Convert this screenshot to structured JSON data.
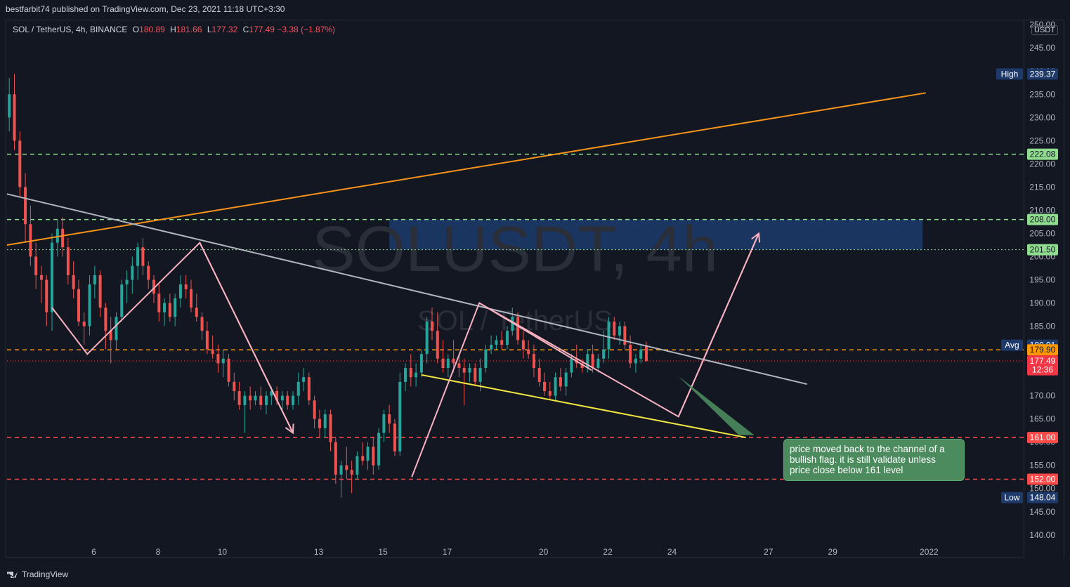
{
  "header": {
    "publisher_line": "bestfarbit74 published on TradingView.com, Dec 23, 2021 11:18 UTC+3:30"
  },
  "legend": {
    "symbol": "SOL / TetherUS, 4h, BINANCE",
    "open_label": "O",
    "open": "180.89",
    "high_label": "H",
    "high": "181.66",
    "low_label": "L",
    "low": "177.32",
    "close_label": "C",
    "close": "177.49",
    "change": "−3.38 (−1.87%)"
  },
  "watermark": {
    "line1": "SOLUSDT, 4h",
    "line2": "SOL / TetherUS"
  },
  "currency": "USDT",
  "annotation": {
    "text": "price moved back to the channel of a bullish flag. it is still validate unless price close below 161 level"
  },
  "footer": {
    "brand": "TradingView"
  },
  "colors": {
    "background": "#131722",
    "up": "#26a69a",
    "down": "#ef5350",
    "trend_orange": "#f7931a",
    "trend_grey": "#b2b5be",
    "flag_yellow": "#f2e640",
    "path_pink": "#f8b1c0",
    "level_green": "#8fdc8f",
    "level_red": "#ff4a4a",
    "level_orange": "#ff9800",
    "zone_blue": "#1f4a8a",
    "note_green": "#4b8b5e"
  },
  "chart_data": {
    "type": "candlestick",
    "symbol": "SOL / TetherUS",
    "interval": "4h",
    "exchange": "BINANCE",
    "y_ticks": [
      140,
      145,
      150,
      155,
      160,
      165,
      170,
      175,
      180,
      185,
      190,
      195,
      200,
      205,
      210,
      215,
      220,
      225,
      230,
      235,
      240,
      245,
      250
    ],
    "x_ticks": [
      {
        "label": "6",
        "t": 6
      },
      {
        "label": "8",
        "t": 8
      },
      {
        "label": "10",
        "t": 10
      },
      {
        "label": "13",
        "t": 13
      },
      {
        "label": "15",
        "t": 15
      },
      {
        "label": "17",
        "t": 17
      },
      {
        "label": "20",
        "t": 20
      },
      {
        "label": "22",
        "t": 22
      },
      {
        "label": "24",
        "t": 24
      },
      {
        "label": "27",
        "t": 27
      },
      {
        "label": "29",
        "t": 29
      },
      {
        "label": "2022",
        "t": 32
      }
    ],
    "ylim": [
      138,
      252
    ],
    "xlim": [
      3.3,
      34.9
    ],
    "price_labels": [
      {
        "label": "High",
        "value": "239.37",
        "y": 239.37,
        "kind": "high"
      },
      {
        "label": "",
        "value": "222.08",
        "y": 222.08,
        "kind": "green"
      },
      {
        "label": "",
        "value": "208.00",
        "y": 208.0,
        "kind": "green"
      },
      {
        "label": "",
        "value": "201.50",
        "y": 201.5,
        "kind": "green"
      },
      {
        "label": "Avg",
        "value": "180.91",
        "y": 180.91,
        "kind": "avg"
      },
      {
        "label": "",
        "value": "179.90",
        "y": 179.9,
        "kind": "orange"
      },
      {
        "label": "",
        "value": "177.49",
        "y": 177.49,
        "kind": "last"
      },
      {
        "label": "",
        "value": "12:36",
        "y": 175.6,
        "kind": "timer"
      },
      {
        "label": "",
        "value": "161.00",
        "y": 161.0,
        "kind": "red"
      },
      {
        "label": "",
        "value": "152.00",
        "y": 152.0,
        "kind": "red"
      },
      {
        "label": "Low",
        "value": "148.04",
        "y": 148.04,
        "kind": "low"
      }
    ],
    "levels": [
      {
        "y": 222.08,
        "style": "green"
      },
      {
        "y": 208.0,
        "style": "green"
      },
      {
        "y": 201.5,
        "style": "green-fine"
      },
      {
        "y": 179.9,
        "style": "orange"
      },
      {
        "y": 177.49,
        "style": "last"
      },
      {
        "y": 161.0,
        "style": "red"
      },
      {
        "y": 152.0,
        "style": "red"
      }
    ],
    "zone": {
      "t1": 15.2,
      "t2": 31.8,
      "y1": 201.5,
      "y2": 208.0
    },
    "trendlines": [
      {
        "style": "orange",
        "points": [
          [
            3.3,
            202.5
          ],
          [
            31.9,
            235.3
          ]
        ]
      },
      {
        "style": "grey",
        "points": [
          [
            3.3,
            213.5
          ],
          [
            28.2,
            172.5
          ]
        ]
      },
      {
        "style": "yellow",
        "points": [
          [
            16.2,
            174.5
          ],
          [
            26.3,
            161.0
          ]
        ]
      },
      {
        "style": "pink",
        "points": [
          [
            4.7,
            189.0
          ],
          [
            5.8,
            179.0
          ],
          [
            9.3,
            203.0
          ],
          [
            12.2,
            162.0
          ]
        ]
      },
      {
        "style": "pink",
        "points": [
          [
            15.9,
            152.5
          ],
          [
            18.0,
            190.0
          ],
          [
            24.2,
            165.5
          ],
          [
            26.7,
            205.0
          ]
        ]
      },
      {
        "style": "pink-arrow",
        "points": [
          [
            24.2,
            165.5
          ],
          [
            26.7,
            205.0
          ]
        ]
      },
      {
        "style": "pink-arrow",
        "points": [
          [
            9.3,
            203.0
          ],
          [
            12.2,
            162.0
          ]
        ]
      },
      {
        "style": "pink",
        "points": [
          [
            18.0,
            190.0
          ],
          [
            21.5,
            175.5
          ]
        ]
      },
      {
        "style": "note-pointer",
        "points": [
          [
            24.2,
            174.2
          ],
          [
            26.3,
            161.5
          ]
        ]
      }
    ],
    "candles": [
      {
        "t": 3.37,
        "o": 230.0,
        "h": 238.5,
        "l": 227.0,
        "c": 235.0
      },
      {
        "t": 3.53,
        "o": 235.0,
        "h": 239.37,
        "l": 223.0,
        "c": 225.0
      },
      {
        "t": 3.7,
        "o": 225.0,
        "h": 227.0,
        "l": 213.0,
        "c": 215.0
      },
      {
        "t": 3.87,
        "o": 215.0,
        "h": 218.0,
        "l": 203.0,
        "c": 207.0
      },
      {
        "t": 4.03,
        "o": 207.0,
        "h": 211.0,
        "l": 198.0,
        "c": 200.0
      },
      {
        "t": 4.2,
        "o": 200.0,
        "h": 203.0,
        "l": 193.0,
        "c": 196.0
      },
      {
        "t": 4.37,
        "o": 196.0,
        "h": 198.0,
        "l": 190.0,
        "c": 195.0
      },
      {
        "t": 4.53,
        "o": 195.0,
        "h": 196.0,
        "l": 185.0,
        "c": 188.0
      },
      {
        "t": 4.7,
        "o": 188.0,
        "h": 205.0,
        "l": 184.0,
        "c": 203.0
      },
      {
        "t": 4.87,
        "o": 203.0,
        "h": 208.0,
        "l": 200.0,
        "c": 206.0
      },
      {
        "t": 5.03,
        "o": 206.0,
        "h": 208.5,
        "l": 200.0,
        "c": 202.0
      },
      {
        "t": 5.2,
        "o": 202.0,
        "h": 204.0,
        "l": 194.0,
        "c": 196.0
      },
      {
        "t": 5.37,
        "o": 196.0,
        "h": 199.0,
        "l": 191.0,
        "c": 193.0
      },
      {
        "t": 5.53,
        "o": 193.0,
        "h": 195.0,
        "l": 185.0,
        "c": 186.0
      },
      {
        "t": 5.7,
        "o": 186.0,
        "h": 188.0,
        "l": 181.0,
        "c": 185.0
      },
      {
        "t": 5.87,
        "o": 185.0,
        "h": 196.0,
        "l": 183.0,
        "c": 194.0
      },
      {
        "t": 6.03,
        "o": 194.0,
        "h": 198.0,
        "l": 191.0,
        "c": 196.0
      },
      {
        "t": 6.2,
        "o": 196.0,
        "h": 197.0,
        "l": 187.0,
        "c": 189.0
      },
      {
        "t": 6.37,
        "o": 189.0,
        "h": 190.0,
        "l": 180.0,
        "c": 184.0
      },
      {
        "t": 6.53,
        "o": 184.0,
        "h": 187.0,
        "l": 177.0,
        "c": 182.0
      },
      {
        "t": 6.7,
        "o": 182.0,
        "h": 188.0,
        "l": 180.0,
        "c": 187.0
      },
      {
        "t": 6.87,
        "o": 187.0,
        "h": 195.0,
        "l": 186.0,
        "c": 194.0
      },
      {
        "t": 7.03,
        "o": 194.0,
        "h": 197.0,
        "l": 190.0,
        "c": 195.0
      },
      {
        "t": 7.2,
        "o": 195.0,
        "h": 200.0,
        "l": 192.0,
        "c": 198.0
      },
      {
        "t": 7.37,
        "o": 198.0,
        "h": 203.0,
        "l": 195.0,
        "c": 202.0
      },
      {
        "t": 7.53,
        "o": 202.0,
        "h": 204.0,
        "l": 196.0,
        "c": 198.0
      },
      {
        "t": 7.7,
        "o": 198.0,
        "h": 199.0,
        "l": 193.0,
        "c": 195.0
      },
      {
        "t": 7.87,
        "o": 195.0,
        "h": 196.0,
        "l": 190.0,
        "c": 192.0
      },
      {
        "t": 8.03,
        "o": 192.0,
        "h": 194.0,
        "l": 186.0,
        "c": 188.0
      },
      {
        "t": 8.2,
        "o": 188.0,
        "h": 191.0,
        "l": 185.0,
        "c": 190.0
      },
      {
        "t": 8.37,
        "o": 190.0,
        "h": 192.0,
        "l": 186.0,
        "c": 187.0
      },
      {
        "t": 8.53,
        "o": 187.0,
        "h": 192.0,
        "l": 185.0,
        "c": 191.0
      },
      {
        "t": 8.7,
        "o": 191.0,
        "h": 196.0,
        "l": 189.0,
        "c": 194.0
      },
      {
        "t": 8.87,
        "o": 194.0,
        "h": 196.0,
        "l": 191.0,
        "c": 193.0
      },
      {
        "t": 9.03,
        "o": 193.0,
        "h": 195.0,
        "l": 188.0,
        "c": 189.0
      },
      {
        "t": 9.2,
        "o": 189.0,
        "h": 192.0,
        "l": 186.0,
        "c": 187.0
      },
      {
        "t": 9.37,
        "o": 187.0,
        "h": 188.0,
        "l": 182.0,
        "c": 184.0
      },
      {
        "t": 9.53,
        "o": 184.0,
        "h": 186.0,
        "l": 179.0,
        "c": 180.0
      },
      {
        "t": 9.7,
        "o": 180.0,
        "h": 183.0,
        "l": 178.0,
        "c": 179.0
      },
      {
        "t": 9.87,
        "o": 179.0,
        "h": 181.0,
        "l": 175.0,
        "c": 177.0
      },
      {
        "t": 10.03,
        "o": 177.0,
        "h": 180.0,
        "l": 174.0,
        "c": 178.0
      },
      {
        "t": 10.2,
        "o": 178.0,
        "h": 179.0,
        "l": 172.0,
        "c": 173.0
      },
      {
        "t": 10.37,
        "o": 173.0,
        "h": 175.0,
        "l": 169.0,
        "c": 171.0
      },
      {
        "t": 10.53,
        "o": 171.0,
        "h": 173.0,
        "l": 167.0,
        "c": 168.0
      },
      {
        "t": 10.7,
        "o": 168.0,
        "h": 171.0,
        "l": 162.0,
        "c": 170.0
      },
      {
        "t": 10.87,
        "o": 170.0,
        "h": 172.0,
        "l": 167.0,
        "c": 169.0
      },
      {
        "t": 11.03,
        "o": 169.0,
        "h": 171.0,
        "l": 168.0,
        "c": 170.0
      },
      {
        "t": 11.2,
        "o": 170.0,
        "h": 172.0,
        "l": 167.0,
        "c": 168.0
      },
      {
        "t": 11.37,
        "o": 168.0,
        "h": 171.0,
        "l": 166.0,
        "c": 170.0
      },
      {
        "t": 11.53,
        "o": 170.0,
        "h": 172.0,
        "l": 168.0,
        "c": 171.0
      },
      {
        "t": 11.7,
        "o": 171.0,
        "h": 172.0,
        "l": 168.0,
        "c": 169.0
      },
      {
        "t": 11.87,
        "o": 169.0,
        "h": 171.0,
        "l": 167.0,
        "c": 170.0
      },
      {
        "t": 12.03,
        "o": 170.0,
        "h": 171.0,
        "l": 167.0,
        "c": 168.0
      },
      {
        "t": 12.2,
        "o": 168.0,
        "h": 171.0,
        "l": 167.0,
        "c": 170.0
      },
      {
        "t": 12.37,
        "o": 170.0,
        "h": 175.0,
        "l": 168.0,
        "c": 173.0
      },
      {
        "t": 12.53,
        "o": 173.0,
        "h": 176.0,
        "l": 171.0,
        "c": 174.0
      },
      {
        "t": 12.7,
        "o": 174.0,
        "h": 175.0,
        "l": 168.0,
        "c": 169.0
      },
      {
        "t": 12.87,
        "o": 169.0,
        "h": 170.0,
        "l": 163.0,
        "c": 165.0
      },
      {
        "t": 13.03,
        "o": 165.0,
        "h": 167.0,
        "l": 161.0,
        "c": 163.0
      },
      {
        "t": 13.2,
        "o": 163.0,
        "h": 167.0,
        "l": 161.0,
        "c": 166.0
      },
      {
        "t": 13.37,
        "o": 166.0,
        "h": 167.0,
        "l": 158.0,
        "c": 160.0
      },
      {
        "t": 13.53,
        "o": 160.0,
        "h": 161.0,
        "l": 151.0,
        "c": 153.0
      },
      {
        "t": 13.7,
        "o": 153.0,
        "h": 156.0,
        "l": 148.04,
        "c": 155.0
      },
      {
        "t": 13.87,
        "o": 155.0,
        "h": 159.0,
        "l": 152.0,
        "c": 154.0
      },
      {
        "t": 14.03,
        "o": 154.0,
        "h": 156.0,
        "l": 149.0,
        "c": 153.0
      },
      {
        "t": 14.2,
        "o": 153.0,
        "h": 158.0,
        "l": 152.0,
        "c": 157.0
      },
      {
        "t": 14.37,
        "o": 157.0,
        "h": 160.0,
        "l": 155.0,
        "c": 156.0
      },
      {
        "t": 14.53,
        "o": 156.0,
        "h": 160.0,
        "l": 154.0,
        "c": 159.0
      },
      {
        "t": 14.7,
        "o": 159.0,
        "h": 161.0,
        "l": 153.0,
        "c": 155.0
      },
      {
        "t": 14.87,
        "o": 155.0,
        "h": 163.0,
        "l": 154.0,
        "c": 162.0
      },
      {
        "t": 15.03,
        "o": 162.0,
        "h": 167.0,
        "l": 160.0,
        "c": 166.0
      },
      {
        "t": 15.2,
        "o": 166.0,
        "h": 168.0,
        "l": 162.0,
        "c": 164.0
      },
      {
        "t": 15.37,
        "o": 164.0,
        "h": 165.0,
        "l": 157.0,
        "c": 158.0
      },
      {
        "t": 15.53,
        "o": 158.0,
        "h": 175.0,
        "l": 157.0,
        "c": 173.0
      },
      {
        "t": 15.7,
        "o": 173.0,
        "h": 177.0,
        "l": 171.0,
        "c": 176.0
      },
      {
        "t": 15.87,
        "o": 176.0,
        "h": 179.0,
        "l": 172.0,
        "c": 174.0
      },
      {
        "t": 16.03,
        "o": 174.0,
        "h": 177.0,
        "l": 172.0,
        "c": 175.0
      },
      {
        "t": 16.2,
        "o": 175.0,
        "h": 180.0,
        "l": 174.0,
        "c": 179.0
      },
      {
        "t": 16.37,
        "o": 179.0,
        "h": 187.0,
        "l": 177.0,
        "c": 186.0
      },
      {
        "t": 16.53,
        "o": 186.0,
        "h": 189.0,
        "l": 182.0,
        "c": 184.0
      },
      {
        "t": 16.7,
        "o": 184.0,
        "h": 188.0,
        "l": 177.0,
        "c": 178.0
      },
      {
        "t": 16.87,
        "o": 178.0,
        "h": 182.0,
        "l": 175.0,
        "c": 176.0
      },
      {
        "t": 17.03,
        "o": 176.0,
        "h": 179.0,
        "l": 174.0,
        "c": 178.0
      },
      {
        "t": 17.2,
        "o": 178.0,
        "h": 182.0,
        "l": 175.0,
        "c": 177.0
      },
      {
        "t": 17.37,
        "o": 177.0,
        "h": 179.0,
        "l": 174.0,
        "c": 176.0
      },
      {
        "t": 17.53,
        "o": 176.0,
        "h": 178.0,
        "l": 168.0,
        "c": 175.0
      },
      {
        "t": 17.7,
        "o": 175.0,
        "h": 177.0,
        "l": 173.0,
        "c": 176.0
      },
      {
        "t": 17.87,
        "o": 176.0,
        "h": 177.0,
        "l": 172.0,
        "c": 173.0
      },
      {
        "t": 18.03,
        "o": 173.0,
        "h": 178.0,
        "l": 171.0,
        "c": 176.0
      },
      {
        "t": 18.2,
        "o": 176.0,
        "h": 181.0,
        "l": 175.0,
        "c": 180.0
      },
      {
        "t": 18.37,
        "o": 180.0,
        "h": 183.0,
        "l": 179.0,
        "c": 181.0
      },
      {
        "t": 18.53,
        "o": 181.0,
        "h": 183.0,
        "l": 180.0,
        "c": 182.0
      },
      {
        "t": 18.7,
        "o": 182.0,
        "h": 184.0,
        "l": 180.0,
        "c": 181.0
      },
      {
        "t": 18.87,
        "o": 181.0,
        "h": 185.0,
        "l": 180.0,
        "c": 184.0
      },
      {
        "t": 19.03,
        "o": 184.0,
        "h": 189.0,
        "l": 183.0,
        "c": 187.0
      },
      {
        "t": 19.2,
        "o": 187.0,
        "h": 188.0,
        "l": 181.0,
        "c": 182.0
      },
      {
        "t": 19.37,
        "o": 182.0,
        "h": 184.0,
        "l": 178.0,
        "c": 180.0
      },
      {
        "t": 19.53,
        "o": 180.0,
        "h": 182.0,
        "l": 178.0,
        "c": 179.0
      },
      {
        "t": 19.7,
        "o": 179.0,
        "h": 181.0,
        "l": 174.0,
        "c": 176.0
      },
      {
        "t": 19.87,
        "o": 176.0,
        "h": 178.0,
        "l": 172.0,
        "c": 173.0
      },
      {
        "t": 20.03,
        "o": 173.0,
        "h": 175.0,
        "l": 170.0,
        "c": 171.0
      },
      {
        "t": 20.2,
        "o": 171.0,
        "h": 173.0,
        "l": 169.0,
        "c": 170.0
      },
      {
        "t": 20.37,
        "o": 170.0,
        "h": 175.0,
        "l": 169.0,
        "c": 174.0
      },
      {
        "t": 20.53,
        "o": 174.0,
        "h": 176.0,
        "l": 171.0,
        "c": 172.0
      },
      {
        "t": 20.7,
        "o": 172.0,
        "h": 176.0,
        "l": 170.0,
        "c": 175.0
      },
      {
        "t": 20.87,
        "o": 175.0,
        "h": 179.0,
        "l": 174.0,
        "c": 178.0
      },
      {
        "t": 21.03,
        "o": 178.0,
        "h": 181.0,
        "l": 176.0,
        "c": 177.0
      },
      {
        "t": 21.2,
        "o": 177.0,
        "h": 178.0,
        "l": 175.0,
        "c": 176.0
      },
      {
        "t": 21.37,
        "o": 176.0,
        "h": 180.0,
        "l": 175.0,
        "c": 179.0
      },
      {
        "t": 21.53,
        "o": 179.0,
        "h": 181.0,
        "l": 175.0,
        "c": 176.0
      },
      {
        "t": 21.7,
        "o": 176.0,
        "h": 179.0,
        "l": 175.0,
        "c": 178.0
      },
      {
        "t": 21.87,
        "o": 178.0,
        "h": 184.0,
        "l": 177.0,
        "c": 180.0
      },
      {
        "t": 22.03,
        "o": 180.0,
        "h": 187.0,
        "l": 178.0,
        "c": 186.0
      },
      {
        "t": 22.2,
        "o": 186.0,
        "h": 187.0,
        "l": 182.0,
        "c": 183.0
      },
      {
        "t": 22.37,
        "o": 183.0,
        "h": 186.0,
        "l": 181.0,
        "c": 185.0
      },
      {
        "t": 22.53,
        "o": 185.0,
        "h": 186.0,
        "l": 180.0,
        "c": 181.0
      },
      {
        "t": 22.7,
        "o": 181.0,
        "h": 183.0,
        "l": 176.0,
        "c": 177.0
      },
      {
        "t": 22.87,
        "o": 177.0,
        "h": 179.0,
        "l": 175.0,
        "c": 178.0
      },
      {
        "t": 23.03,
        "o": 178.0,
        "h": 181.0,
        "l": 177.0,
        "c": 180.0
      },
      {
        "t": 23.2,
        "o": 180.89,
        "h": 181.66,
        "l": 177.32,
        "c": 177.49
      }
    ]
  }
}
